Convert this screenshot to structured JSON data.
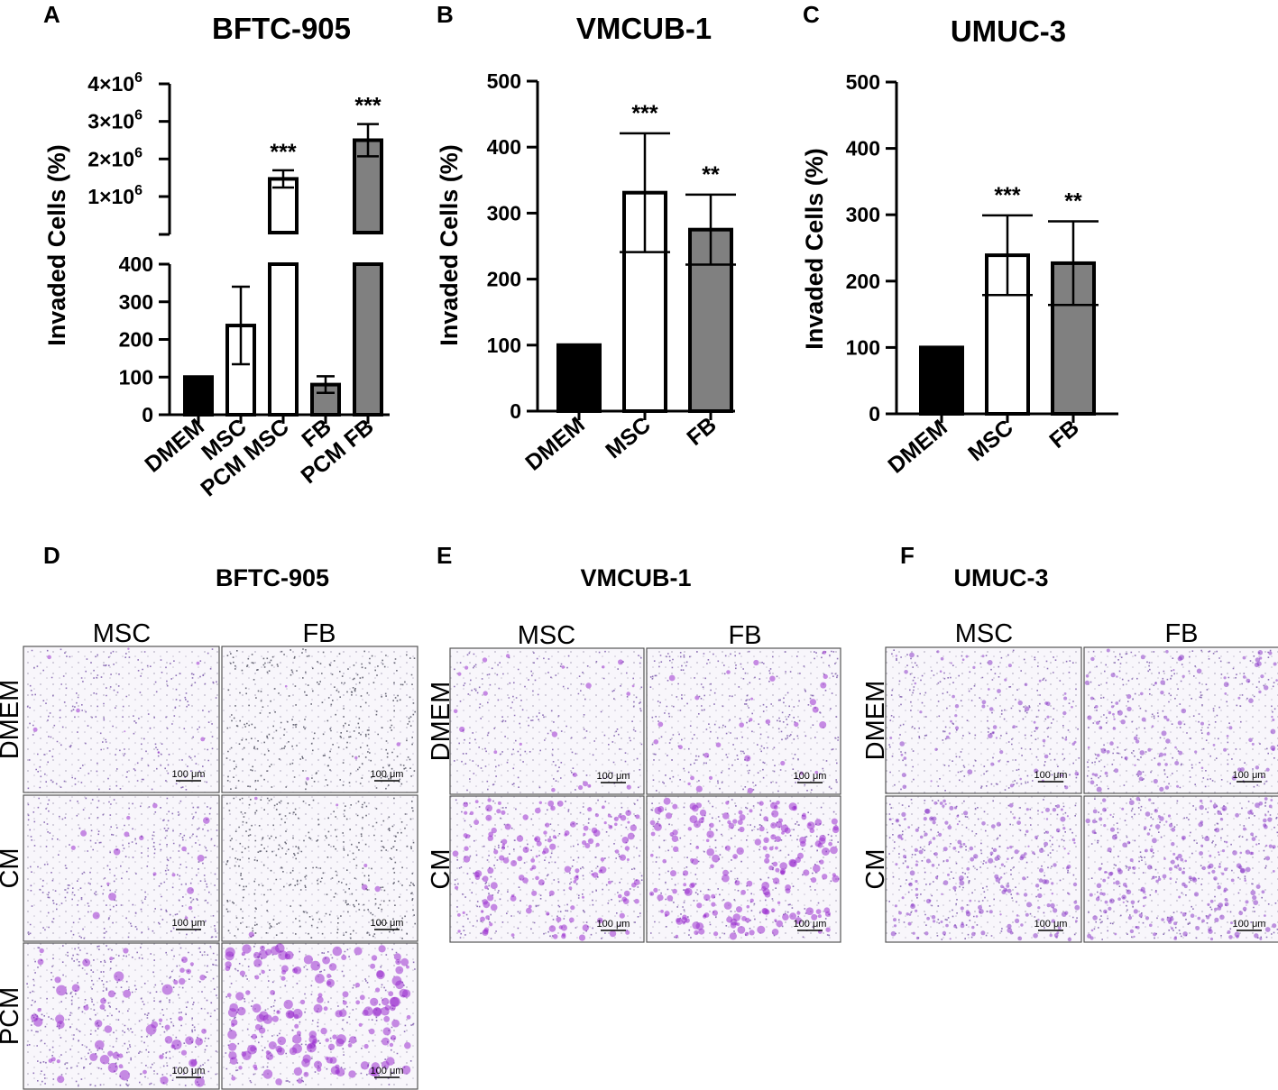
{
  "chart_data": [
    {
      "panel": "A",
      "type": "bar",
      "title": "BFTC-905",
      "ylabel": "Invaded Cells (%)",
      "categories": [
        "DMEM",
        "MSC",
        "PCM MSC",
        "FB",
        "PCM FB"
      ],
      "values": [
        100,
        237,
        1470000,
        80,
        2500000
      ],
      "errors": [
        0,
        103,
        230000,
        22,
        430000
      ],
      "significance": [
        "",
        "",
        "***",
        "",
        "***"
      ],
      "bar_fills": [
        "#000000",
        "#ffffff",
        "#ffffff",
        "#808080",
        "#808080"
      ],
      "axis_break": true,
      "ylim_lower": [
        0,
        400
      ],
      "yticks_lower": [
        "0",
        "100",
        "200",
        "300",
        "400"
      ],
      "ylim_upper": [
        1000000,
        4000000
      ],
      "yticks_upper": [
        "1×10",
        "2×10",
        "3×10",
        "4×10"
      ],
      "ytick_exponent": "6",
      "grid": false
    },
    {
      "panel": "B",
      "type": "bar",
      "title": "VMCUB-1",
      "ylabel": "Invaded Cells (%)",
      "categories": [
        "DMEM",
        "MSC",
        "FB"
      ],
      "values": [
        100,
        331,
        275
      ],
      "errors": [
        0,
        90,
        53
      ],
      "significance": [
        "",
        "***",
        "**"
      ],
      "bar_fills": [
        "#000000",
        "#ffffff",
        "#808080"
      ],
      "ylim": [
        0,
        500
      ],
      "yticks": [
        "0",
        "100",
        "200",
        "300",
        "400",
        "500"
      ],
      "grid": false
    },
    {
      "panel": "C",
      "type": "bar",
      "title": "UMUC-3",
      "ylabel": "Invaded Cells (%)",
      "categories": [
        "DMEM",
        "MSC",
        "FB"
      ],
      "values": [
        100,
        239,
        227
      ],
      "errors": [
        0,
        60,
        63
      ],
      "significance": [
        "",
        "***",
        "**"
      ],
      "bar_fills": [
        "#000000",
        "#ffffff",
        "#808080"
      ],
      "ylim": [
        0,
        500
      ],
      "yticks": [
        "0",
        "100",
        "200",
        "300",
        "400",
        "500"
      ],
      "grid": false
    }
  ],
  "micrographs": [
    {
      "panel": "D",
      "title": "BFTC-905",
      "columns": [
        "MSC",
        "FB"
      ],
      "rows": [
        "DMEM",
        "CM",
        "PCM"
      ],
      "scale_bar": "100 μm",
      "cell_color": "#9b30d0"
    },
    {
      "panel": "E",
      "title": "VMCUB-1",
      "columns": [
        "MSC",
        "FB"
      ],
      "rows": [
        "DMEM",
        "CM"
      ],
      "scale_bar": "100 μm",
      "cell_color": "#9b30d0"
    },
    {
      "panel": "F",
      "title": "UMUC-3",
      "columns": [
        "MSC",
        "FB"
      ],
      "rows": [
        "DMEM",
        "CM"
      ],
      "scale_bar": "100 μm",
      "cell_color": "#8c3cc8"
    }
  ]
}
